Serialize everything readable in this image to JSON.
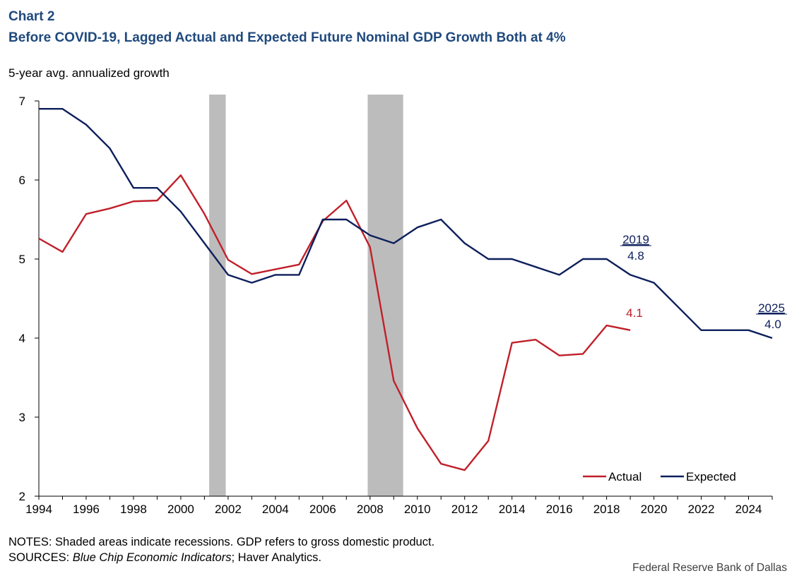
{
  "chart_number": "Chart 2",
  "title": "Before COVID-19, Lagged Actual and Expected Future Nominal GDP Growth Both at 4%",
  "notes": "NOTES: Shaded areas indicate recessions. GDP refers to gross domestic product.",
  "sources": {
    "prefix": "SOURCES: ",
    "italic": "Blue Chip Economic Indicators",
    "suffix": "; Haver Analytics."
  },
  "credit": "Federal Reserve Bank of Dallas",
  "colors": {
    "actual": "#c0202a",
    "expected": "#0d1f5c",
    "recession": "#bdbcbc",
    "axis": "#000000"
  },
  "chart_data": {
    "type": "line",
    "ylabel": "5-year avg. annualized  growth",
    "xlim": [
      1994,
      2025
    ],
    "ylim": [
      2,
      7
    ],
    "xticks": [
      "1994",
      "1996",
      "1998",
      "2000",
      "2002",
      "2004",
      "2006",
      "2008",
      "2010",
      "2012",
      "2014",
      "2016",
      "2018",
      "2020",
      "2022",
      "2024"
    ],
    "yticks": [
      "2",
      "3",
      "4",
      "5",
      "6",
      "7"
    ],
    "grid": false,
    "legend_position": "bottom-right",
    "recessions": [
      {
        "start": 2001.2,
        "end": 2001.9
      },
      {
        "start": 2007.9,
        "end": 2009.4
      }
    ],
    "series": [
      {
        "name": "Actual",
        "color": "#c0202a",
        "x": [
          1994,
          1995,
          1996,
          1997,
          1998,
          1999,
          2000,
          2001,
          2002,
          2003,
          2004,
          2005,
          2006,
          2007,
          2008,
          2009,
          2010,
          2011,
          2012,
          2013,
          2014,
          2015,
          2016,
          2017,
          2018,
          2019
        ],
        "values": [
          5.26,
          5.09,
          5.57,
          5.64,
          5.73,
          5.74,
          6.06,
          5.57,
          4.99,
          4.81,
          4.87,
          4.93,
          5.48,
          5.74,
          5.15,
          3.46,
          2.86,
          2.41,
          2.33,
          2.7,
          3.94,
          3.98,
          3.78,
          3.8,
          4.16,
          4.1
        ]
      },
      {
        "name": "Expected",
        "color": "#0d1f5c",
        "x": [
          1994,
          1995,
          1996,
          1997,
          1998,
          1999,
          2000,
          2001,
          2002,
          2003,
          2004,
          2005,
          2006,
          2007,
          2008,
          2009,
          2010,
          2011,
          2012,
          2013,
          2014,
          2015,
          2016,
          2017,
          2018,
          2019,
          2020,
          2021,
          2022,
          2023,
          2024,
          2025
        ],
        "values": [
          6.9,
          6.9,
          6.7,
          6.4,
          5.9,
          5.9,
          5.6,
          5.2,
          4.8,
          4.7,
          4.8,
          4.8,
          5.5,
          5.5,
          5.3,
          5.2,
          5.4,
          5.5,
          5.2,
          5.0,
          5.0,
          4.9,
          4.8,
          5.0,
          5.0,
          4.8,
          4.7,
          4.4,
          4.1,
          4.1,
          4.1,
          4.0
        ]
      }
    ],
    "annotations": [
      {
        "id": "exp2019_year",
        "text": "2019",
        "underline": true,
        "color": "#0d1f5c"
      },
      {
        "id": "exp2019_val",
        "text": "4.8",
        "color": "#0d1f5c"
      },
      {
        "id": "act2019_val",
        "text": "4.1",
        "color": "#c0202a"
      },
      {
        "id": "exp2025_year",
        "text": "2025",
        "underline": true,
        "color": "#0d1f5c"
      },
      {
        "id": "exp2025_val",
        "text": "4.0",
        "color": "#0d1f5c"
      }
    ]
  }
}
